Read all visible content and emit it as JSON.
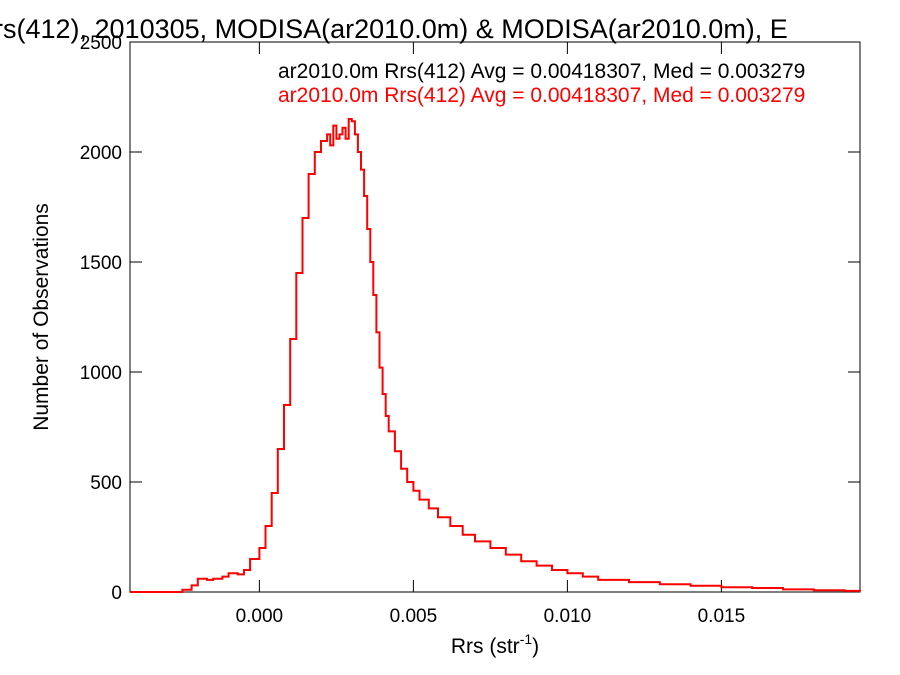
{
  "chart_data": {
    "type": "line",
    "title": "rs(412), 2010305, MODISA(ar2010.0m) & MODISA(ar2010.0m), E",
    "xlabel_main": "Rrs (str",
    "xlabel_sup": "-1",
    "xlabel_close": ")",
    "ylabel": "Number of Observations",
    "xlim": [
      -0.0042,
      0.0195
    ],
    "ylim": [
      0,
      2500
    ],
    "x_ticks": [
      0.0,
      0.005,
      0.01,
      0.015
    ],
    "x_tick_labels": [
      "0.000",
      "0.005",
      "0.010",
      "0.015"
    ],
    "y_ticks": [
      0,
      500,
      1000,
      1500,
      2000,
      2500
    ],
    "y_tick_labels": [
      "0",
      "500",
      "1000",
      "1500",
      "2000",
      "2500"
    ],
    "grid": false,
    "legend": [
      {
        "text": "ar2010.0m Rrs(412) Avg = 0.00418307, Med = 0.003279",
        "color": "#000000"
      },
      {
        "text": "ar2010.0m Rrs(412) Avg = 0.00418307, Med = 0.003279",
        "color": "#ff0000"
      }
    ],
    "series": [
      {
        "color": "#ff0000",
        "x": [
          -0.0042,
          -0.003,
          -0.0025,
          -0.0022,
          -0.002,
          -0.0017,
          -0.0015,
          -0.0012,
          -0.001,
          -0.0007,
          -0.0005,
          -0.0003,
          0.0,
          0.0002,
          0.0004,
          0.0006,
          0.0008,
          0.001,
          0.0012,
          0.0014,
          0.0016,
          0.0018,
          0.002,
          0.0022,
          0.0023,
          0.0024,
          0.0025,
          0.0026,
          0.0027,
          0.0028,
          0.0029,
          0.003,
          0.0031,
          0.0032,
          0.0033,
          0.0034,
          0.0035,
          0.0036,
          0.0037,
          0.0038,
          0.0039,
          0.004,
          0.0041,
          0.0042,
          0.0044,
          0.0046,
          0.0048,
          0.005,
          0.0052,
          0.0055,
          0.0058,
          0.0062,
          0.0066,
          0.007,
          0.0075,
          0.008,
          0.0085,
          0.009,
          0.0095,
          0.01,
          0.0105,
          0.011,
          0.012,
          0.013,
          0.014,
          0.015,
          0.016,
          0.017,
          0.018,
          0.019,
          0.0195
        ],
        "y": [
          0,
          0,
          10,
          30,
          60,
          55,
          60,
          70,
          85,
          80,
          100,
          150,
          200,
          300,
          450,
          650,
          850,
          1150,
          1450,
          1700,
          1900,
          2000,
          2050,
          2080,
          2030,
          2120,
          2060,
          2080,
          2110,
          2060,
          2150,
          2140,
          2080,
          2000,
          1920,
          1800,
          1650,
          1500,
          1350,
          1180,
          1020,
          900,
          800,
          730,
          640,
          560,
          500,
          460,
          420,
          380,
          340,
          300,
          260,
          230,
          200,
          170,
          140,
          120,
          100,
          85,
          70,
          55,
          45,
          35,
          28,
          22,
          18,
          12,
          8,
          5,
          3
        ]
      }
    ]
  }
}
